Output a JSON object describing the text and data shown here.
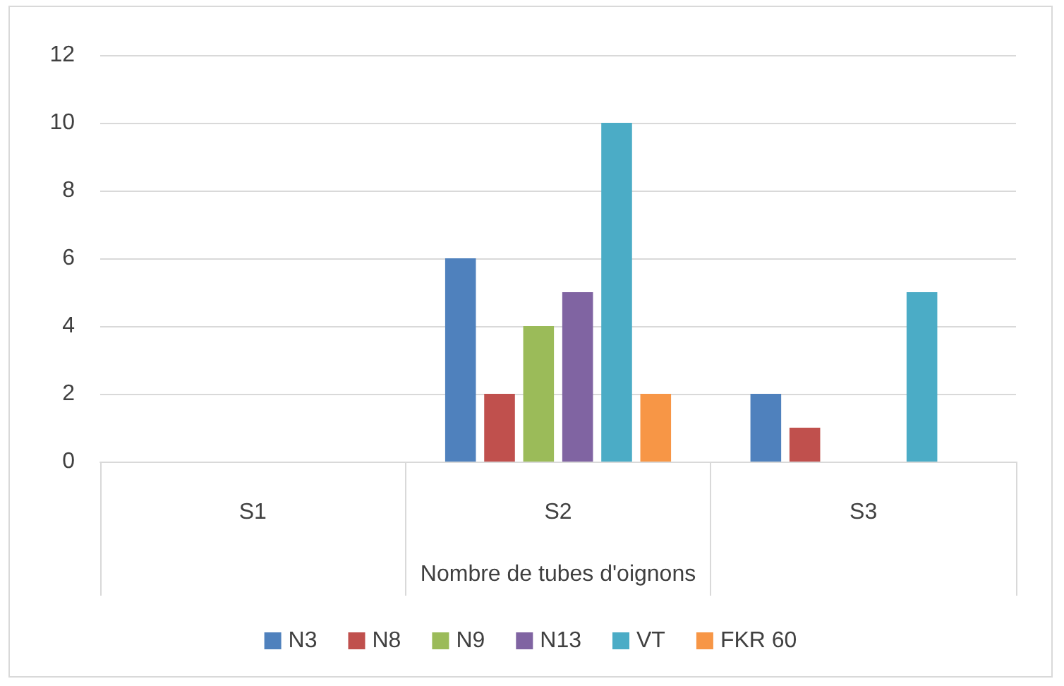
{
  "chart_data": {
    "type": "bar",
    "xlabel": "Nombre de tubes d'oignons",
    "categories": [
      "S1",
      "S2",
      "S3"
    ],
    "series": [
      {
        "name": "N3",
        "color": "#4f81bd",
        "values": [
          0,
          6,
          2
        ]
      },
      {
        "name": "N8",
        "color": "#c0504d",
        "values": [
          0,
          2,
          1
        ]
      },
      {
        "name": "N9",
        "color": "#9bbb59",
        "values": [
          0,
          4,
          0
        ]
      },
      {
        "name": "N13",
        "color": "#8064a2",
        "values": [
          0,
          5,
          0
        ]
      },
      {
        "name": "VT",
        "color": "#4bacc6",
        "values": [
          0,
          10,
          5
        ]
      },
      {
        "name": "FKR 60",
        "color": "#f79646",
        "values": [
          0,
          2,
          0
        ]
      }
    ],
    "ylim": [
      0,
      12
    ],
    "yticks": [
      0,
      2,
      4,
      6,
      8,
      10,
      12
    ],
    "grid": "y",
    "legend": "bottom"
  }
}
